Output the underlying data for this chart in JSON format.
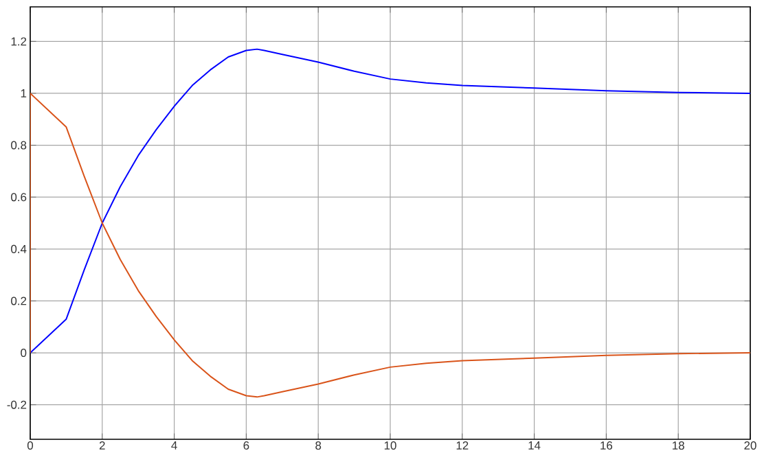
{
  "chart_data": {
    "type": "line",
    "xlim": [
      0,
      20
    ],
    "ylim": [
      -0.333,
      1.333
    ],
    "xticks": [
      0,
      2,
      4,
      6,
      8,
      10,
      12,
      14,
      16,
      18,
      20
    ],
    "yticks": [
      -0.2,
      0,
      0.2,
      0.4,
      0.6,
      0.8,
      1,
      1.2
    ],
    "grid": true,
    "marker": "none",
    "line_style": "solid",
    "series": [
      {
        "color": "#0000ff",
        "x": [
          0,
          1,
          1.5,
          2,
          2.5,
          3,
          3.5,
          4,
          4.5,
          5,
          5.5,
          6,
          6.3,
          6.5,
          7,
          8,
          9,
          10,
          11,
          12,
          14,
          16,
          18,
          20
        ],
        "values": [
          0,
          0.13,
          0.32,
          0.5,
          0.64,
          0.76,
          0.86,
          0.95,
          1.03,
          1.09,
          1.14,
          1.165,
          1.17,
          1.165,
          1.15,
          1.12,
          1.085,
          1.055,
          1.04,
          1.03,
          1.02,
          1.01,
          1.003,
          1.0
        ]
      },
      {
        "color": "#d95319",
        "x": [
          0,
          0,
          1,
          1.5,
          2,
          2.5,
          3,
          3.5,
          4,
          4.5,
          5,
          5.5,
          6,
          6.3,
          6.5,
          7,
          8,
          9,
          10,
          11,
          12,
          14,
          16,
          18,
          20
        ],
        "values": [
          0,
          1,
          0.87,
          0.68,
          0.5,
          0.36,
          0.24,
          0.14,
          0.05,
          -0.03,
          -0.09,
          -0.14,
          -0.165,
          -0.17,
          -0.165,
          -0.15,
          -0.12,
          -0.085,
          -0.055,
          -0.04,
          -0.03,
          -0.02,
          -0.01,
          -0.003,
          0
        ]
      }
    ]
  }
}
